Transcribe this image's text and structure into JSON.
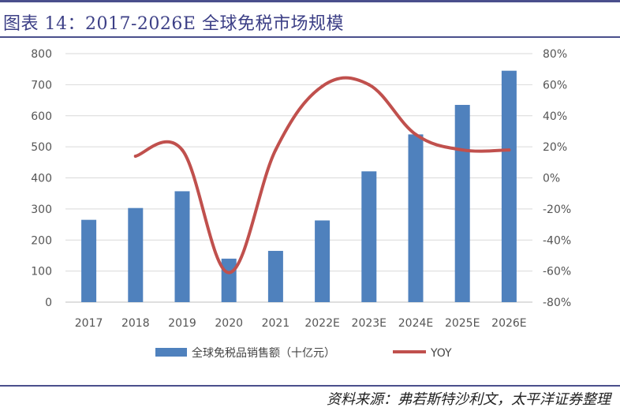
{
  "figure": {
    "title": "图表 14：2017-2026E 全球免税市场规模",
    "source": "资料来源：弗若斯特沙利文，太平洋证券整理"
  },
  "colors": {
    "bar": "#4f81bd",
    "line": "#c0504d",
    "rule": "#4a4f8c"
  },
  "chart_data": {
    "type": "bar",
    "categories": [
      "2017",
      "2018",
      "2019",
      "2020",
      "2021",
      "2022E",
      "2023E",
      "2024E",
      "2025E",
      "2026E"
    ],
    "series": [
      {
        "name": "全球免税品销售额（十亿元）",
        "type": "bar",
        "axis": "left",
        "values": [
          265,
          303,
          357,
          140,
          165,
          263,
          421,
          540,
          635,
          745
        ]
      },
      {
        "name": "YOY",
        "type": "line",
        "axis": "right",
        "unit": "%",
        "values": [
          null,
          14,
          18,
          -61,
          18,
          59,
          60,
          28,
          18,
          18
        ]
      }
    ],
    "y_left": {
      "ylim": [
        0,
        800
      ],
      "ticks": [
        "0",
        "100",
        "200",
        "300",
        "400",
        "500",
        "600",
        "700",
        "800"
      ]
    },
    "y_right": {
      "ylim": [
        -80,
        80
      ],
      "ticks": [
        "-80%",
        "-60%",
        "-40%",
        "-20%",
        "0%",
        "20%",
        "40%",
        "60%",
        "80%"
      ]
    },
    "grid": true,
    "legend": "bottom"
  }
}
